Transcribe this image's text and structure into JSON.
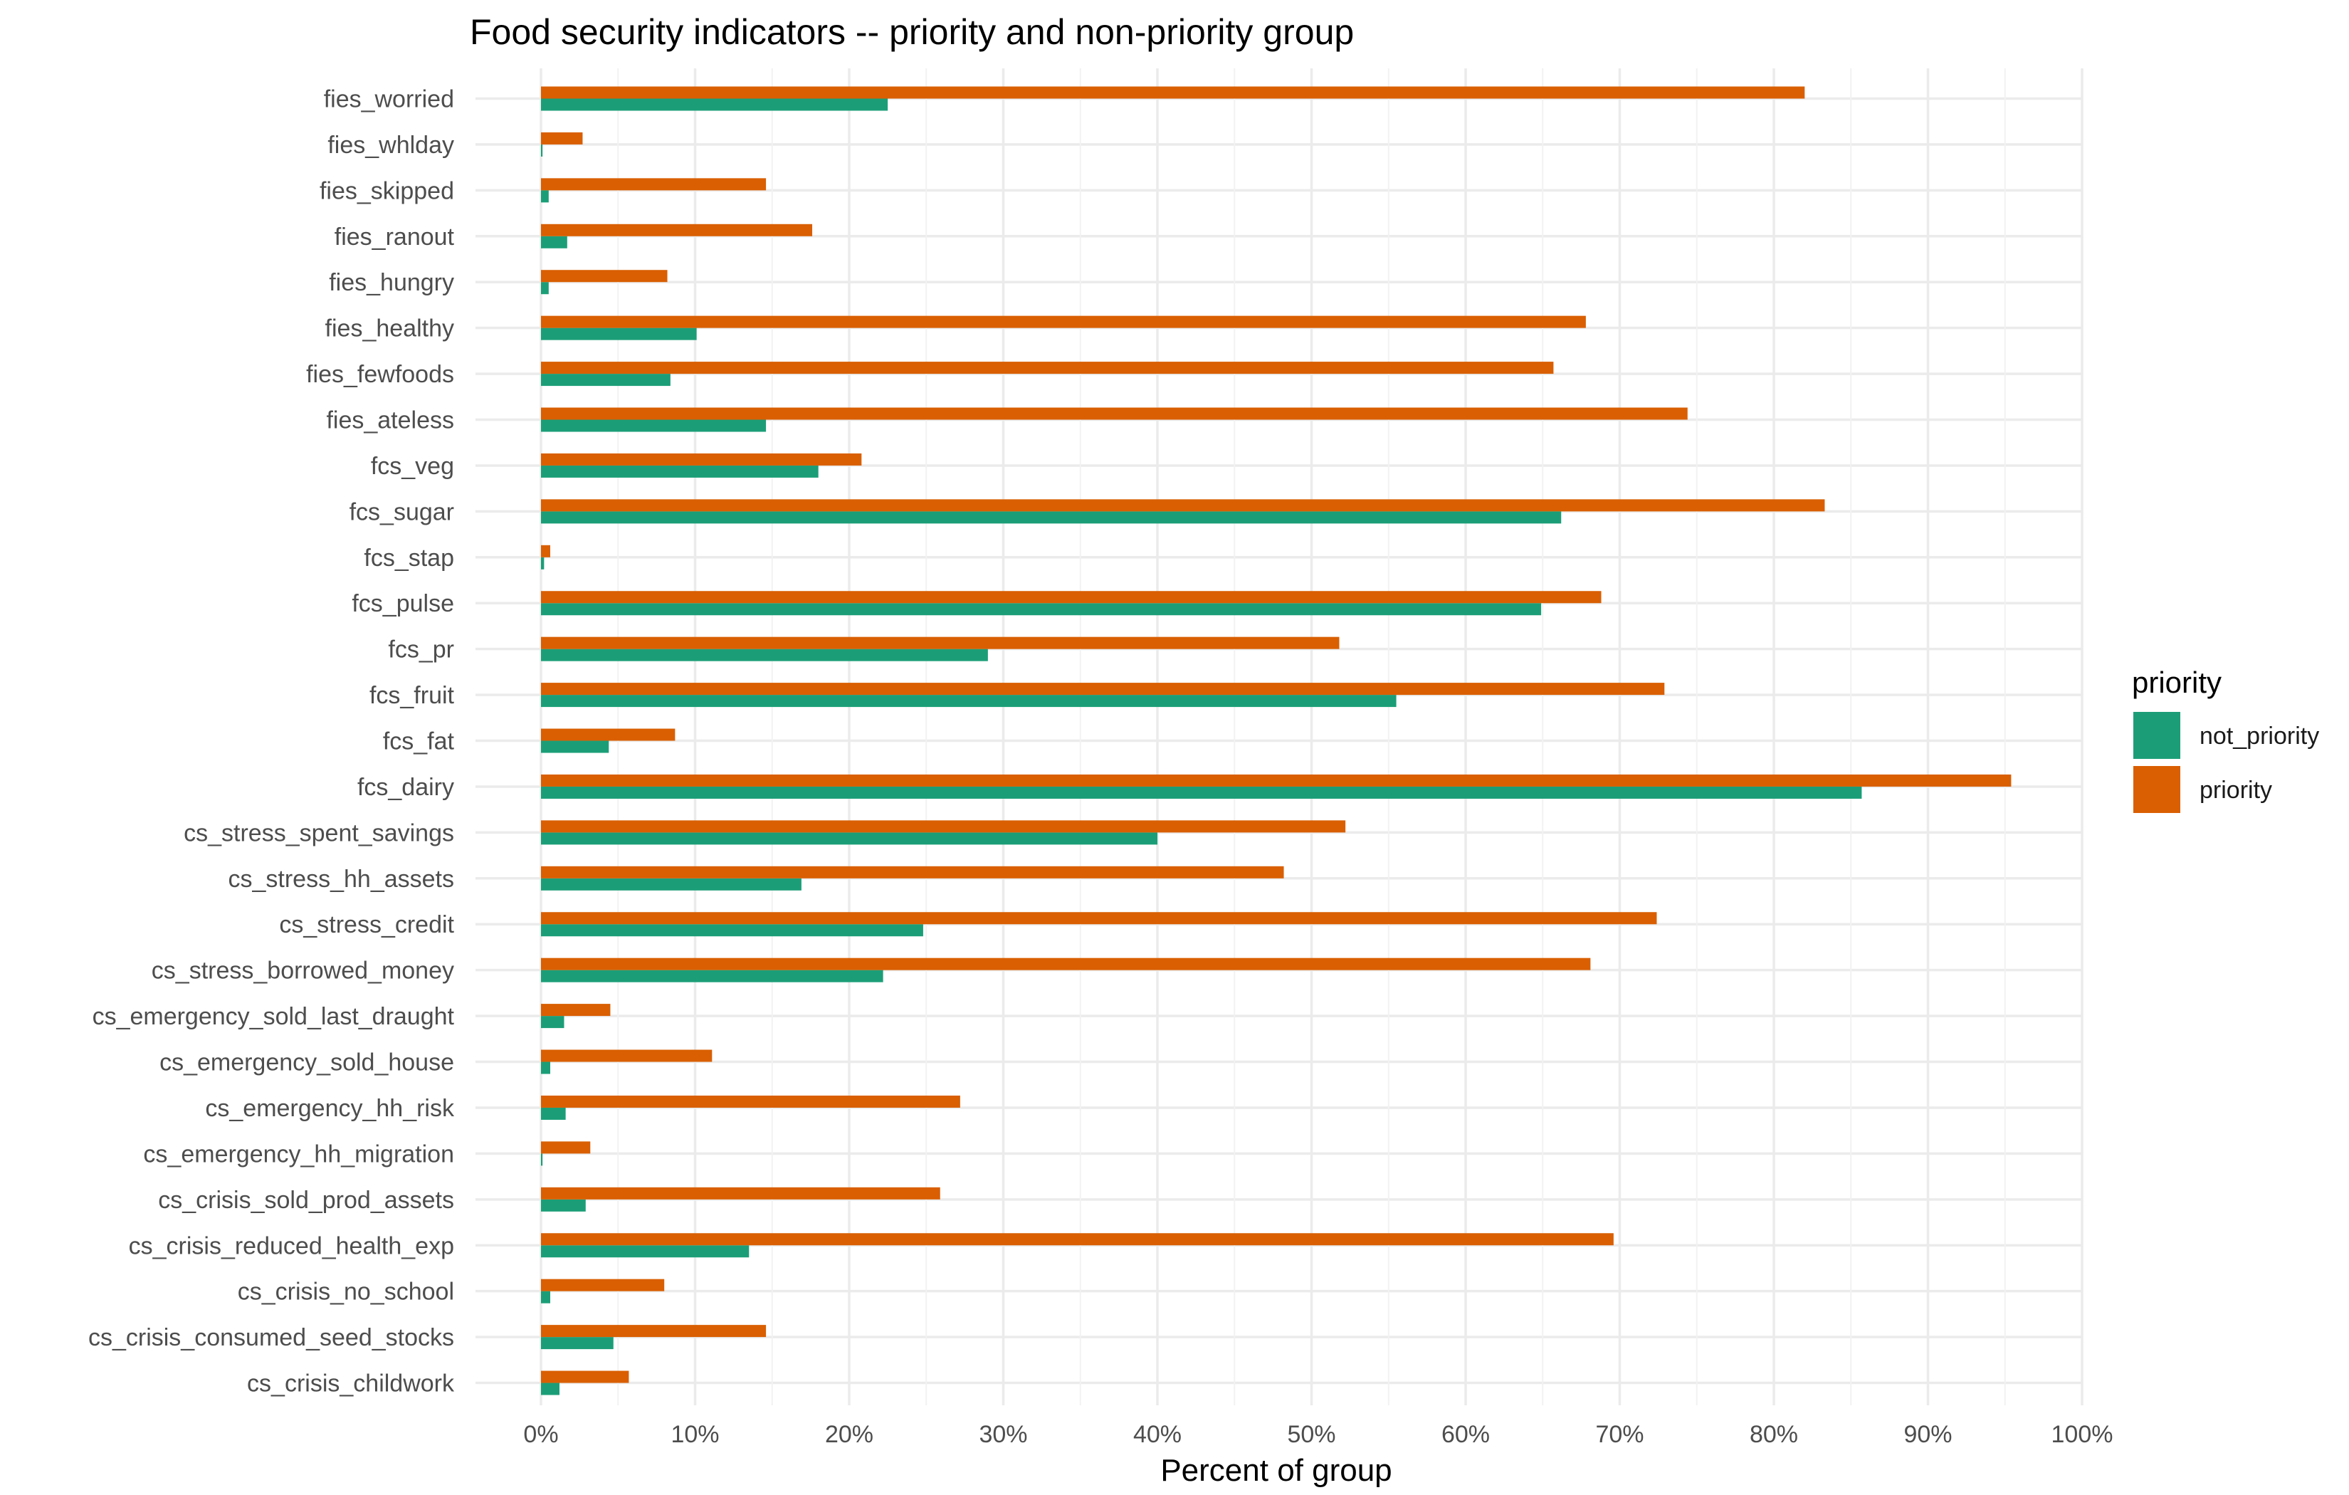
{
  "chart_data": {
    "type": "bar",
    "orientation": "horizontal",
    "title": "Food security indicators -- priority and non-priority group",
    "xlabel": "Percent of group",
    "ylabel": "",
    "xlim": [
      0,
      1
    ],
    "x_ticks": [
      0,
      0.1,
      0.2,
      0.3,
      0.4,
      0.5,
      0.6,
      0.7,
      0.8,
      0.9,
      1.0
    ],
    "x_tick_labels": [
      "0%",
      "10%",
      "20%",
      "30%",
      "40%",
      "50%",
      "60%",
      "70%",
      "80%",
      "90%",
      "100%"
    ],
    "grid": true,
    "legend_position": "right",
    "legend_title": "priority",
    "categories": [
      "fies_worried",
      "fies_whlday",
      "fies_skipped",
      "fies_ranout",
      "fies_hungry",
      "fies_healthy",
      "fies_fewfoods",
      "fies_ateless",
      "fcs_veg",
      "fcs_sugar",
      "fcs_stap",
      "fcs_pulse",
      "fcs_pr",
      "fcs_fruit",
      "fcs_fat",
      "fcs_dairy",
      "cs_stress_spent_savings",
      "cs_stress_hh_assets",
      "cs_stress_credit",
      "cs_stress_borrowed_money",
      "cs_emergency_sold_last_draught",
      "cs_emergency_sold_house",
      "cs_emergency_hh_risk",
      "cs_emergency_hh_migration",
      "cs_crisis_sold_prod_assets",
      "cs_crisis_reduced_health_exp",
      "cs_crisis_no_school",
      "cs_crisis_consumed_seed_stocks",
      "cs_crisis_childwork"
    ],
    "series": [
      {
        "name": "not_priority",
        "color": "#1b9e77",
        "values": [
          0.225,
          0.001,
          0.005,
          0.017,
          0.005,
          0.101,
          0.084,
          0.146,
          0.18,
          0.662,
          0.002,
          0.649,
          0.29,
          0.555,
          0.044,
          0.857,
          0.4,
          0.169,
          0.248,
          0.222,
          0.015,
          0.006,
          0.016,
          0.001,
          0.029,
          0.135,
          0.006,
          0.047,
          0.012
        ]
      },
      {
        "name": "priority",
        "color": "#d95f02",
        "values": [
          0.82,
          0.027,
          0.146,
          0.176,
          0.082,
          0.678,
          0.657,
          0.744,
          0.208,
          0.833,
          0.006,
          0.688,
          0.518,
          0.729,
          0.087,
          0.954,
          0.522,
          0.482,
          0.724,
          0.681,
          0.045,
          0.111,
          0.272,
          0.032,
          0.259,
          0.696,
          0.08,
          0.146,
          0.057
        ]
      }
    ]
  }
}
